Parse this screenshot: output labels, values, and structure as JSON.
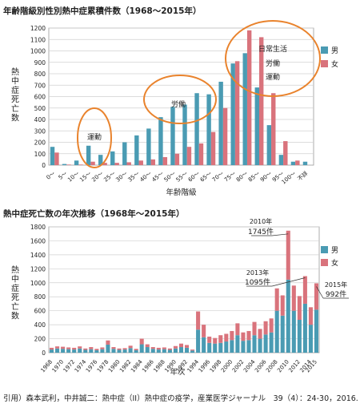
{
  "titles": {
    "chart1": "年齢階級別性別熱中症累積件数（1968〜2015年）",
    "chart2": "熱中症死亡数の年次推移（1968年〜2015年）"
  },
  "citation": "引用）森本武利，中井誠二：熱中症（II）熱中症の疫学，産業医学ジャーナル　39（4）：24-30，2016.",
  "colors": {
    "male": "#4a9bb3",
    "female": "#d9737c",
    "oval": "#e9832d",
    "grid": "#d0d0d0"
  },
  "chart_data": [
    {
      "type": "bar",
      "title": "年齢階級別性別熱中症累積件数（1968〜2015年）",
      "xlabel": "年齢階級",
      "ylabel": "熱中症死亡数",
      "ylim": [
        0,
        1200
      ],
      "yticks": [
        0,
        100,
        200,
        300,
        400,
        500,
        600,
        700,
        800,
        900,
        1000,
        1100,
        1200
      ],
      "categories": [
        "0〜",
        "5〜",
        "10〜",
        "15〜",
        "20〜",
        "25〜",
        "30〜",
        "35〜",
        "40〜",
        "45〜",
        "50〜",
        "55〜",
        "60〜",
        "65〜",
        "70〜",
        "75〜",
        "80〜",
        "85〜",
        "90〜",
        "95〜",
        "100〜",
        "不詳"
      ],
      "series": [
        {
          "name": "男",
          "values": [
            160,
            10,
            40,
            170,
            90,
            120,
            200,
            260,
            320,
            420,
            510,
            530,
            630,
            620,
            730,
            890,
            980,
            680,
            350,
            90,
            30,
            30
          ]
        },
        {
          "name": "女",
          "values": [
            110,
            5,
            5,
            30,
            20,
            20,
            25,
            40,
            50,
            70,
            100,
            160,
            190,
            290,
            500,
            910,
            1180,
            1120,
            630,
            210,
            40,
            0
          ]
        }
      ],
      "annotations": [
        "運動",
        "労働",
        "日常生活",
        "労働",
        "運動"
      ],
      "legend": "right"
    },
    {
      "type": "bar",
      "stacked": true,
      "title": "熱中症死亡数の年次推移（1968年〜2015年）",
      "xlabel": "年次",
      "ylabel": "熱中症死亡数",
      "ylim": [
        0,
        1800
      ],
      "yticks": [
        0,
        200,
        400,
        600,
        800,
        1000,
        1200,
        1400,
        1600,
        1800
      ],
      "categories": [
        "1968",
        "1969",
        "1970",
        "1971",
        "1972",
        "1973",
        "1974",
        "1975",
        "1976",
        "1977",
        "1978",
        "1979",
        "1980",
        "1981",
        "1982",
        "1983",
        "1984",
        "1985",
        "1986",
        "1987",
        "1988",
        "1989",
        "1990",
        "1991",
        "1992",
        "1993",
        "1994",
        "1995",
        "1996",
        "1997",
        "1998",
        "1999",
        "2000",
        "2001",
        "2002",
        "2003",
        "2004",
        "2005",
        "2006",
        "2007",
        "2008",
        "2009",
        "2010",
        "2011",
        "2012",
        "2013",
        "2014",
        "2015"
      ],
      "tick_labels": [
        "1968",
        "1970",
        "1972",
        "1974",
        "1976",
        "1978",
        "1980",
        "1982",
        "1984",
        "1986",
        "1988",
        "1990",
        "1992",
        "1994",
        "1996",
        "1998",
        "2000",
        "2002",
        "2004",
        "2006",
        "2008",
        "2010",
        "2012",
        "2014",
        "2015"
      ],
      "series": [
        {
          "name": "男",
          "values": [
            45,
            60,
            55,
            50,
            45,
            60,
            40,
            50,
            35,
            50,
            115,
            55,
            40,
            45,
            65,
            35,
            120,
            80,
            55,
            45,
            50,
            40,
            60,
            80,
            70,
            30,
            330,
            220,
            140,
            130,
            140,
            160,
            180,
            250,
            170,
            180,
            250,
            200,
            260,
            290,
            600,
            530,
            1045,
            600,
            470,
            700,
            400,
            615
          ]
        },
        {
          "name": "女",
          "values": [
            25,
            30,
            30,
            25,
            25,
            30,
            20,
            30,
            20,
            25,
            60,
            25,
            20,
            20,
            35,
            20,
            80,
            40,
            25,
            25,
            25,
            20,
            35,
            50,
            40,
            15,
            260,
            180,
            90,
            80,
            110,
            110,
            130,
            170,
            120,
            130,
            190,
            140,
            190,
            200,
            320,
            290,
            700,
            360,
            340,
            395,
            250,
            377
          ]
        }
      ],
      "annotations": [
        {
          "year": "2010",
          "value": "1745件"
        },
        {
          "year": "2013",
          "value": "1095件"
        },
        {
          "year": "2015",
          "value": "992件"
        }
      ],
      "legend": "right"
    }
  ]
}
